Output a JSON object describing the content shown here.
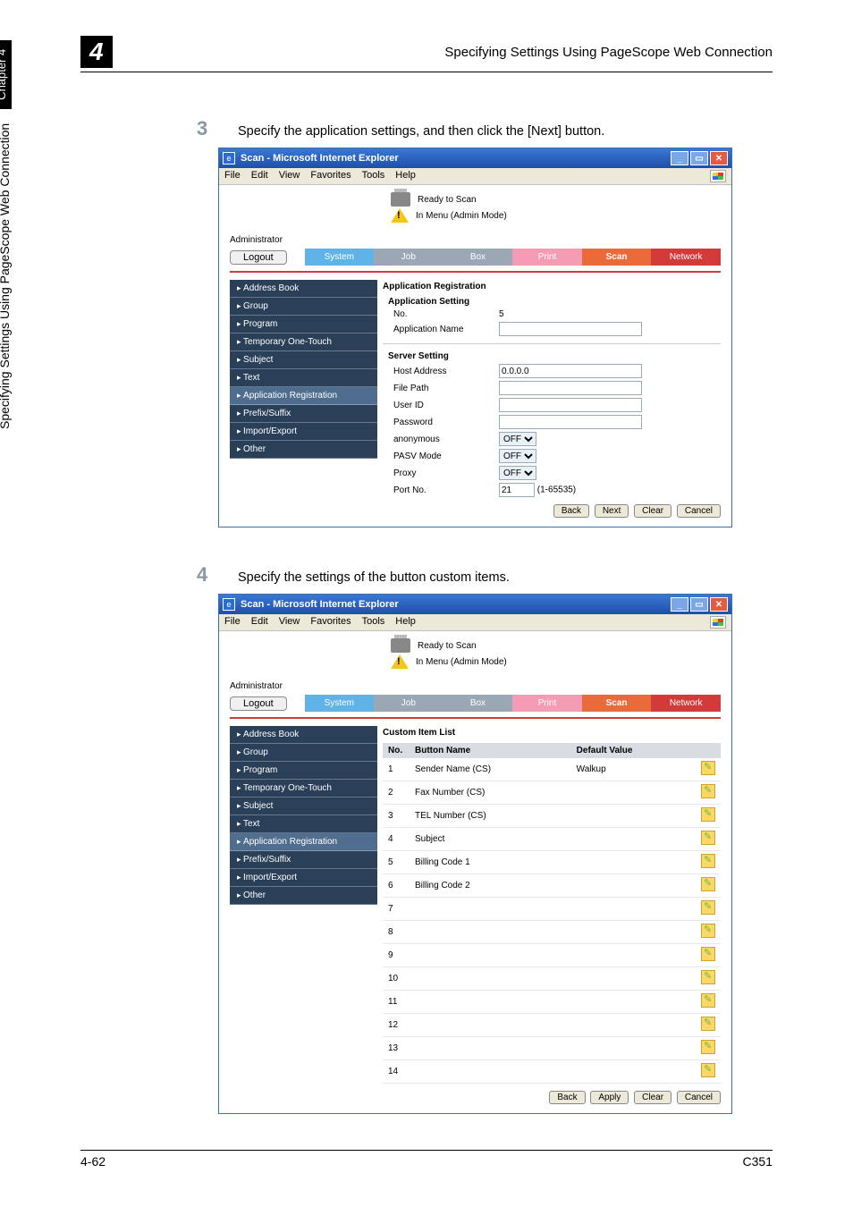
{
  "page": {
    "chapter_badge": "4",
    "header_title": "Specifying Settings Using PageScope Web Connection",
    "side_long": "Specifying Settings Using PageScope Web Connection",
    "side_chapter": "Chapter 4",
    "footer_left": "4-62",
    "footer_right": "C351"
  },
  "steps": {
    "s3_num": "3",
    "s3_text": "Specify the application settings, and then click the [Next] button.",
    "s4_num": "4",
    "s4_text": "Specify the settings of the button custom items."
  },
  "ie": {
    "title": "Scan - Microsoft Internet Explorer",
    "menu": {
      "file": "File",
      "edit": "Edit",
      "view": "View",
      "fav": "Favorites",
      "tools": "Tools",
      "help": "Help"
    },
    "status_ready": "Ready to Scan",
    "status_menu": "In Menu (Admin Mode)",
    "admin": "Administrator",
    "logout": "Logout",
    "tabs": {
      "system": "System",
      "job": "Job",
      "box": "Box",
      "print": "Print",
      "scan": "Scan",
      "network": "Network"
    }
  },
  "nav": {
    "address": "Address Book",
    "group": "Group",
    "program": "Program",
    "temp": "Temporary One-Touch",
    "subject": "Subject",
    "text": "Text",
    "appreg": "Application Registration",
    "prefix": "Prefix/Suffix",
    "impexp": "Import/Export",
    "other": "Other"
  },
  "shot1": {
    "heading": "Application Registration",
    "subheading": "Application Setting",
    "no_label": "No.",
    "no_value": "5",
    "appname_label": "Application Name",
    "server_heading": "Server Setting",
    "host_label": "Host Address",
    "host_value": "0.0.0.0",
    "filepath_label": "File Path",
    "userid_label": "User ID",
    "password_label": "Password",
    "anon_label": "anonymous",
    "pasv_label": "PASV Mode",
    "proxy_label": "Proxy",
    "off": "OFF",
    "port_label": "Port No.",
    "port_value": "21",
    "port_range": "(1-65535)",
    "btn_back": "Back",
    "btn_next": "Next",
    "btn_clear": "Clear",
    "btn_cancel": "Cancel"
  },
  "shot2": {
    "heading": "Custom Item List",
    "col_no": "No.",
    "col_button": "Button Name",
    "col_default": "Default Value",
    "rows": [
      {
        "n": "1",
        "name": "Sender Name (CS)",
        "val": "Walkup"
      },
      {
        "n": "2",
        "name": "Fax Number (CS)",
        "val": ""
      },
      {
        "n": "3",
        "name": "TEL Number (CS)",
        "val": ""
      },
      {
        "n": "4",
        "name": "Subject",
        "val": ""
      },
      {
        "n": "5",
        "name": "Billing Code 1",
        "val": ""
      },
      {
        "n": "6",
        "name": "Billing Code 2",
        "val": ""
      },
      {
        "n": "7",
        "name": "",
        "val": ""
      },
      {
        "n": "8",
        "name": "",
        "val": ""
      },
      {
        "n": "9",
        "name": "",
        "val": ""
      },
      {
        "n": "10",
        "name": "",
        "val": ""
      },
      {
        "n": "11",
        "name": "",
        "val": ""
      },
      {
        "n": "12",
        "name": "",
        "val": ""
      },
      {
        "n": "13",
        "name": "",
        "val": ""
      },
      {
        "n": "14",
        "name": "",
        "val": ""
      }
    ],
    "btn_back": "Back",
    "btn_apply": "Apply",
    "btn_clear": "Clear",
    "btn_cancel": "Cancel"
  }
}
